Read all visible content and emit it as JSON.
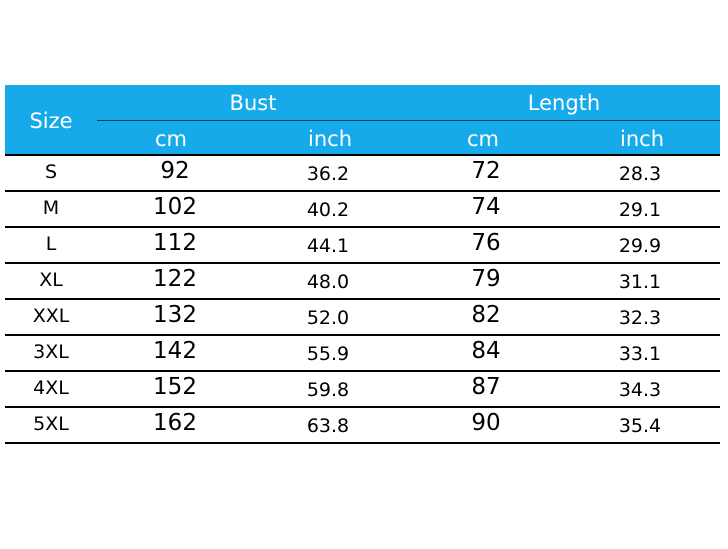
{
  "table": {
    "header": {
      "size": "Size",
      "bust": "Bust",
      "length": "Length",
      "cm": "cm",
      "inch": "inch",
      "color": "#16aaeb"
    },
    "rows": [
      [
        "S",
        "92",
        "36.2",
        "72",
        "28.3"
      ],
      [
        "M",
        "102",
        "40.2",
        "74",
        "29.1"
      ],
      [
        "L",
        "112",
        "44.1",
        "76",
        "29.9"
      ],
      [
        "XL",
        "122",
        "48.0",
        "79",
        "31.1"
      ],
      [
        "XXL",
        "132",
        "52.0",
        "82",
        "32.3"
      ],
      [
        "3XL",
        "142",
        "55.9",
        "84",
        "33.1"
      ],
      [
        "4XL",
        "152",
        "59.8",
        "87",
        "34.3"
      ],
      [
        "5XL",
        "162",
        "63.8",
        "90",
        "35.4"
      ]
    ]
  }
}
